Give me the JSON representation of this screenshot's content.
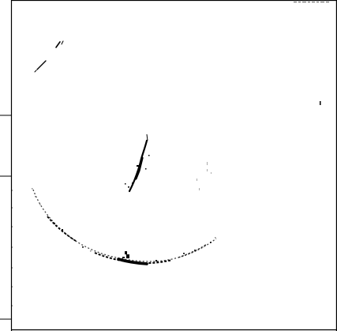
{
  "image": {
    "subject": "binarized-sketch",
    "colors": {
      "background": "#ffffff",
      "ink": "#000000",
      "gray": "#6b6b6b"
    }
  }
}
